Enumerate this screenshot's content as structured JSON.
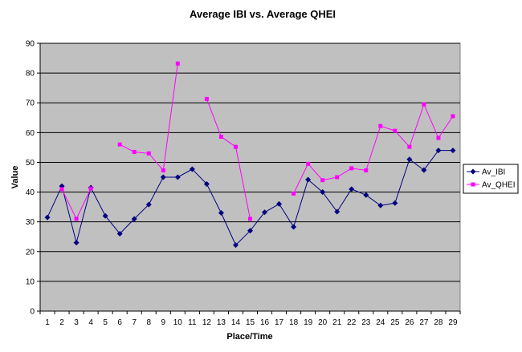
{
  "chart_data": {
    "type": "line",
    "title": "Average IBI vs. Average QHEI",
    "xlabel": "Place/Time",
    "ylabel": "Value",
    "ylim": [
      0,
      90
    ],
    "yticks": [
      0,
      10,
      20,
      30,
      40,
      50,
      60,
      70,
      80,
      90
    ],
    "grid": "horizontal",
    "legend_position": "right",
    "categories": [
      "1",
      "2",
      "3",
      "4",
      "5",
      "6",
      "7",
      "8",
      "9",
      "10",
      "11",
      "12",
      "13",
      "14",
      "15",
      "16",
      "17",
      "18",
      "19",
      "20",
      "21",
      "22",
      "23",
      "24",
      "25",
      "26",
      "27",
      "28",
      "29"
    ],
    "series": [
      {
        "name": "Av_IBI",
        "color": "#000080",
        "marker": "diamond",
        "values": [
          31.5,
          42,
          23,
          41.5,
          32,
          26,
          31,
          35.8,
          45,
          45,
          47.7,
          42.7,
          33,
          22.2,
          27,
          33.2,
          36,
          28.3,
          44.2,
          40,
          33.4,
          41,
          39,
          35.5,
          36.3,
          51,
          47.4,
          54,
          54
        ]
      },
      {
        "name": "Av_QHEI",
        "color": "#ff00ff",
        "marker": "square",
        "values": [
          null,
          41,
          31,
          41.2,
          null,
          56,
          53.5,
          53,
          47.3,
          83.2,
          null,
          71.3,
          58.6,
          55.2,
          31,
          null,
          null,
          39.5,
          49.5,
          44,
          45,
          48,
          47.3,
          62.2,
          60.6,
          55.2,
          69.5,
          58.2,
          65.5
        ]
      }
    ]
  }
}
